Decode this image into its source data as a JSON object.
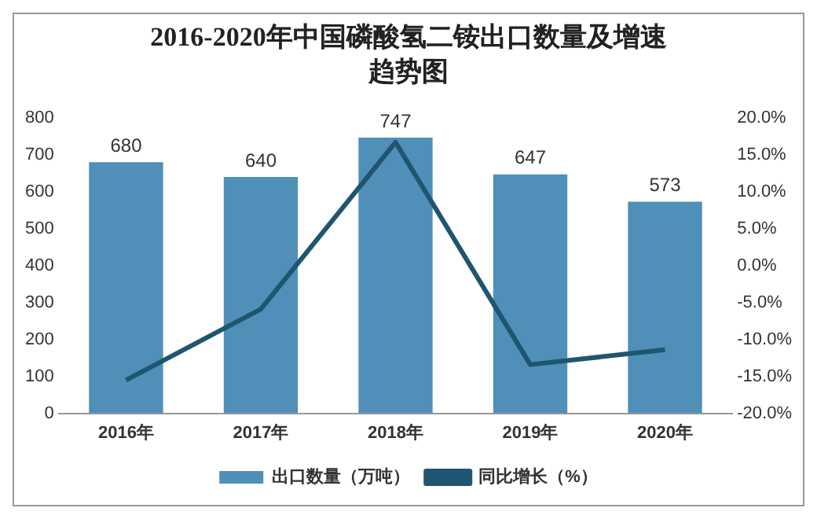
{
  "chart_data": {
    "type": "bar",
    "title": "2016-2020年中国磷酸氢二铵出口数量及增速趋势图",
    "categories": [
      "2016年",
      "2017年",
      "2018年",
      "2019年",
      "2020年"
    ],
    "series": [
      {
        "name": "出口数量（万吨）",
        "color": "#4f8fb8",
        "values": [
          680,
          640,
          747,
          647,
          573
        ],
        "data_labels": true
      },
      {
        "name": "同比增长（%）",
        "type": "line",
        "axis": "y2",
        "color": "#1f5570",
        "values": [
          -15.5,
          -5.9,
          16.7,
          -13.4,
          -11.4
        ]
      }
    ],
    "ylim": [
      0,
      800
    ],
    "yticks": [
      0,
      100,
      200,
      300,
      400,
      500,
      600,
      700,
      800
    ],
    "y2lim": [
      -20,
      20
    ],
    "y2ticks": [
      {
        "value": -20,
        "label": "-20.0%"
      },
      {
        "value": -15,
        "label": "-15.0%"
      },
      {
        "value": -10,
        "label": "-10.0%"
      },
      {
        "value": -5,
        "label": "-5.0%"
      },
      {
        "value": 0,
        "label": "0.0%"
      },
      {
        "value": 5,
        "label": "5.0%"
      },
      {
        "value": 10,
        "label": "10.0%"
      },
      {
        "value": 15,
        "label": "15.0%"
      },
      {
        "value": 20,
        "label": "20.0%"
      }
    ],
    "grid": false,
    "legend": "bottom",
    "marker": "none",
    "line_style": "solid"
  }
}
